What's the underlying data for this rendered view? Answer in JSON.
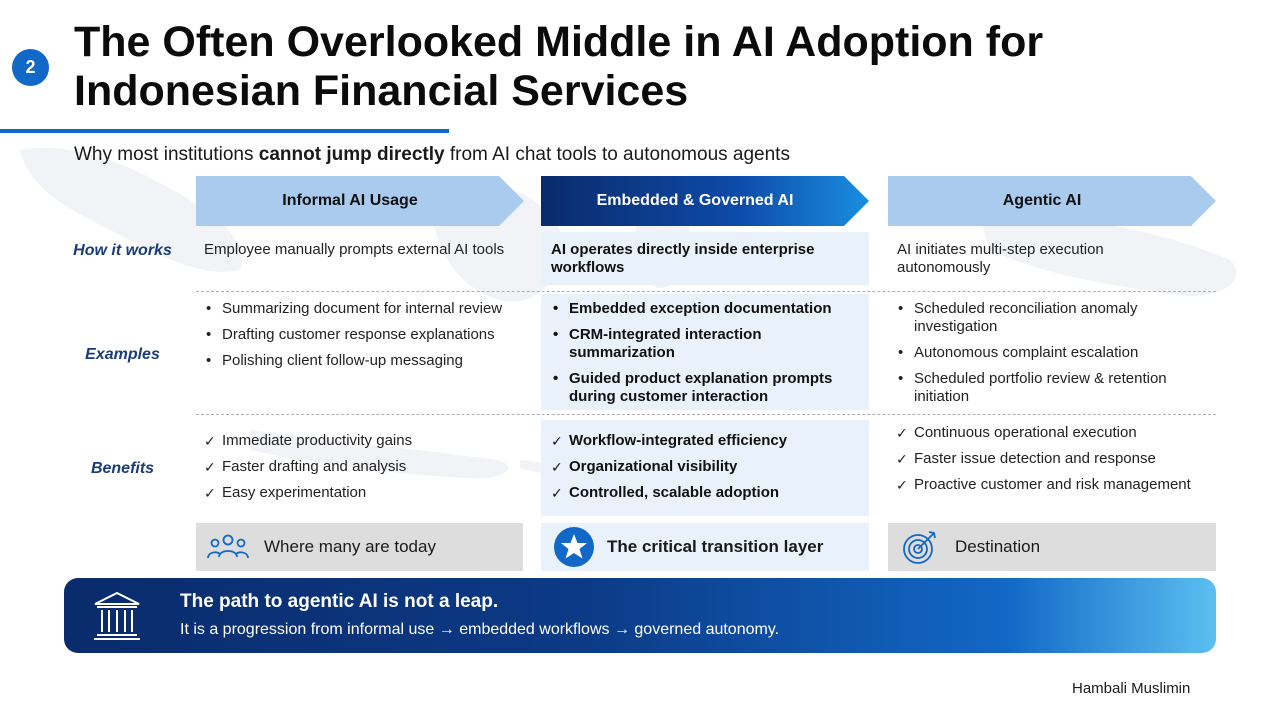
{
  "slide_number": "2",
  "title": "The Often Overlooked Middle in AI Adoption for Indonesian Financial Services",
  "subtitle": {
    "before": "Why most institutions ",
    "emphasis": "cannot jump directly",
    "after": " from AI chat tools to autonomous agents"
  },
  "columns": [
    {
      "header": "Informal AI Usage",
      "how_it_works": "Employee manually prompts external AI tools",
      "examples": [
        "Summarizing document for internal review",
        "Drafting customer response explanations",
        "Polishing client follow-up messaging"
      ],
      "benefits": [
        "Immediate productivity gains",
        "Faster drafting and analysis",
        "Easy experimentation"
      ],
      "tag": "Where many are today",
      "tag_icon": "people-group-icon"
    },
    {
      "header": "Embedded & Governed AI",
      "how_it_works": "AI operates directly inside enterprise workflows",
      "examples": [
        "Embedded exception documentation",
        "CRM-integrated interaction summarization",
        "Guided product explanation prompts during customer interaction"
      ],
      "benefits": [
        "Workflow-integrated efficiency",
        "Organizational visibility",
        "Controlled, scalable adoption"
      ],
      "tag": "The critical transition layer",
      "tag_icon": "star-badge-icon"
    },
    {
      "header": "Agentic AI",
      "how_it_works": "AI initiates multi-step execution autonomously",
      "examples": [
        "Scheduled reconciliation anomaly investigation",
        "Autonomous complaint escalation",
        "Scheduled portfolio review & retention initiation"
      ],
      "benefits": [
        "Continuous operational execution",
        "Faster issue detection and response",
        "Proactive customer and risk management"
      ],
      "tag": "Destination",
      "tag_icon": "target-icon"
    }
  ],
  "row_labels": {
    "how_it_works": "How it works",
    "examples": "Examples",
    "benefits": "Benefits"
  },
  "banner": {
    "title": "The path to agentic AI is not a leap.",
    "text": "It is a progression from informal use → embedded workflows → governed autonomy.",
    "icon": "institution-building-icon"
  },
  "author": "Hambali Muslimin",
  "colors": {
    "accent_blue": "#1268c6",
    "dark_navy": "#0a2b6b",
    "light_header": "#a9cbee",
    "label_navy": "#1a3c7a",
    "mid_panel": "#e9f1fa",
    "grey_tag": "#dddddd"
  }
}
